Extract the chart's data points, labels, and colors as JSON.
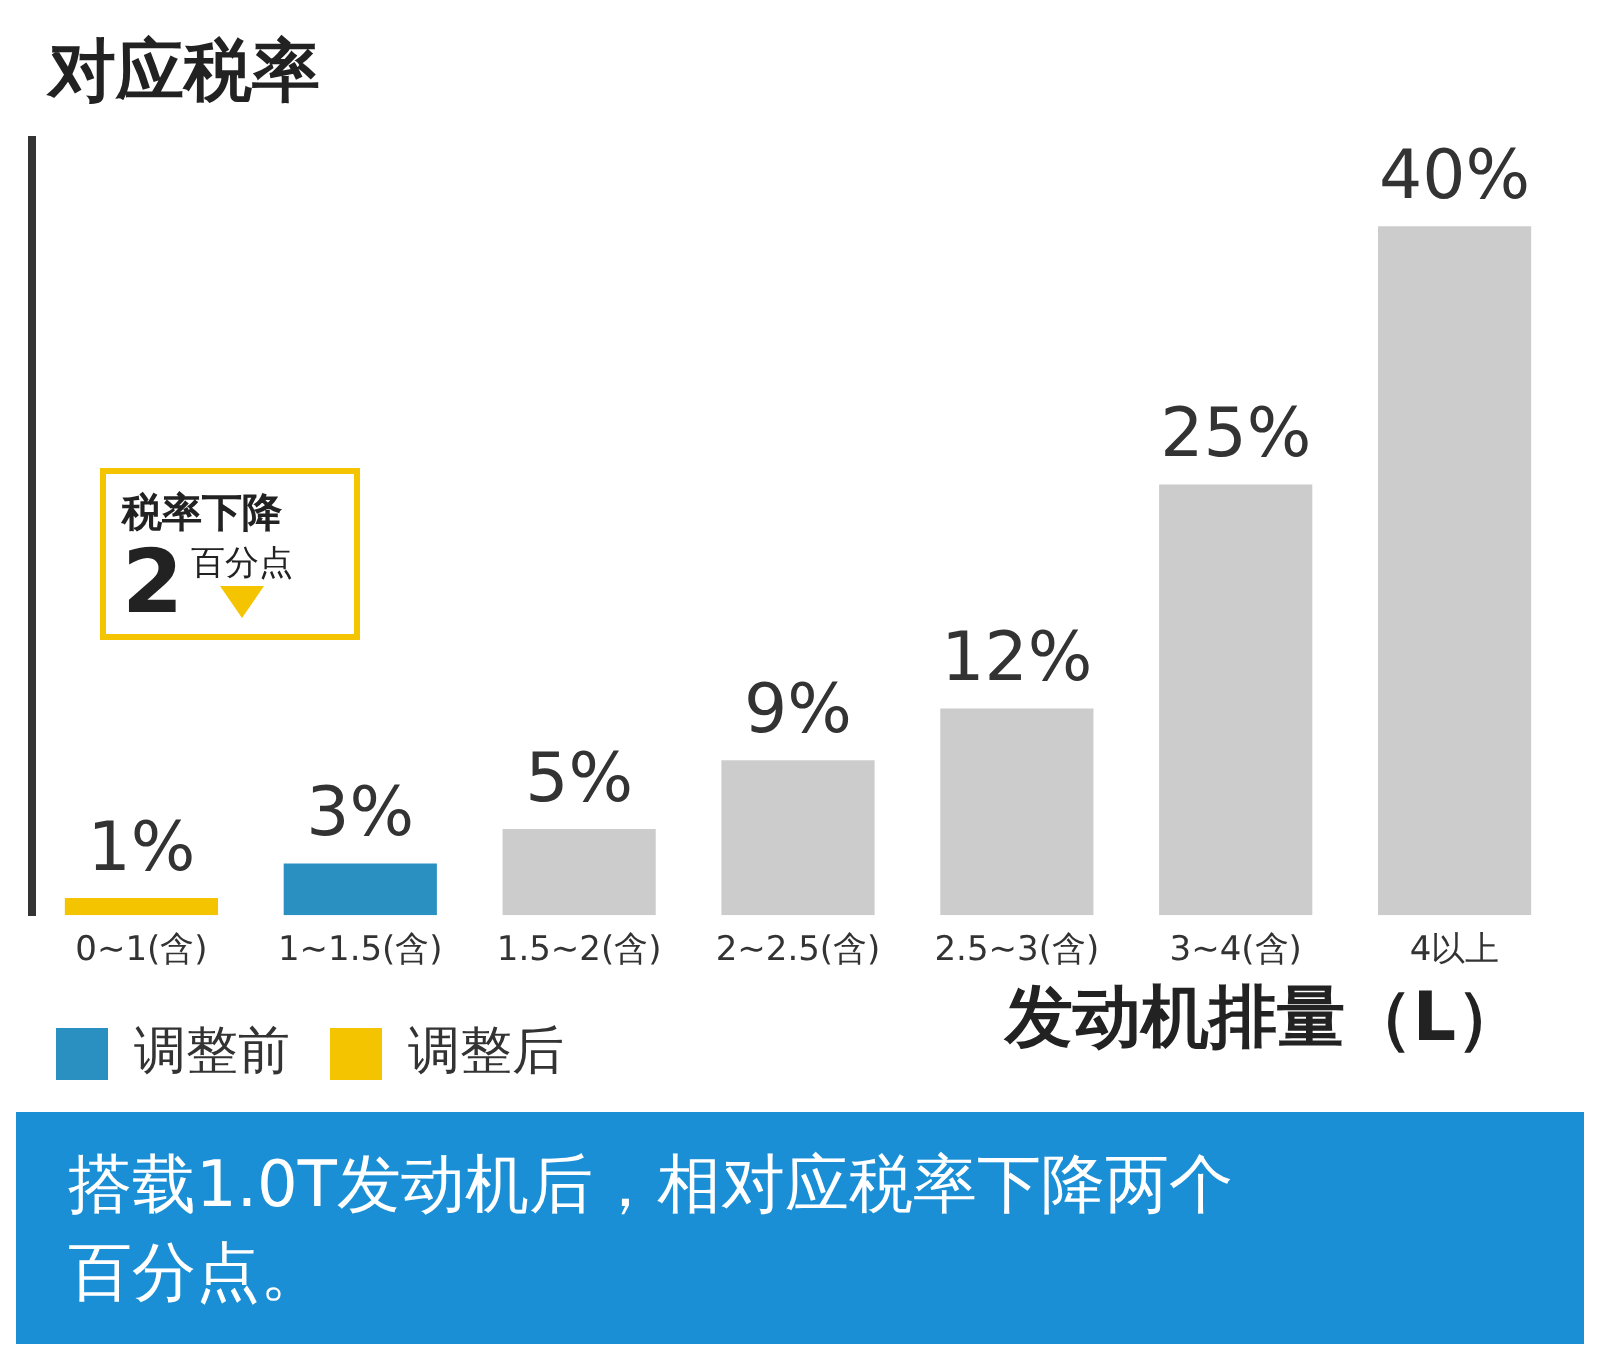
{
  "chart_data": {
    "type": "bar",
    "title": "对应税率",
    "xlabel": "发动机排量（L）",
    "categories": [
      "0~1(含)",
      "1~1.5(含)",
      "1.5~2(含)",
      "2~2.5(含)",
      "2.5~3(含)",
      "3~4(含)",
      "4以上"
    ],
    "series": [
      {
        "name": "调整前",
        "color": "#2a8fc1",
        "values": [
          null,
          3,
          null,
          null,
          null,
          null,
          null
        ],
        "value_labels": [
          null,
          "3%",
          null,
          null,
          null,
          null,
          null
        ]
      },
      {
        "name": "调整后",
        "color": "#f5c400",
        "values": [
          1,
          null,
          null,
          null,
          null,
          null,
          null
        ],
        "value_labels": [
          "1%",
          null,
          null,
          null,
          null,
          null,
          null
        ]
      },
      {
        "color": "#cccccc",
        "values": [
          null,
          null,
          5,
          9,
          12,
          25,
          40
        ],
        "value_labels": [
          null,
          null,
          "5%",
          "9%",
          "12%",
          "25%",
          "40%"
        ]
      }
    ],
    "legend": "bottom left",
    "grid": false,
    "annotations": [
      "税率下降",
      "2",
      "百分点",
      "搭载1.0T发动机后，相对应税率下降两个百分点。"
    ]
  }
}
